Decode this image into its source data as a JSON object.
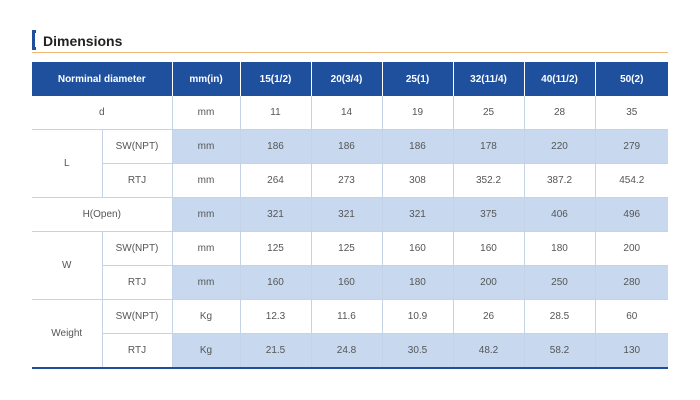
{
  "section": {
    "title": "Dimensions"
  },
  "table": {
    "header": {
      "label": "Norminal diameter",
      "unit": "mm(in)",
      "sizes": [
        "15(1/2)",
        "20(3/4)",
        "25(1)",
        "32(11/4)",
        "40(11/2)",
        "50(2)"
      ]
    },
    "rows": [
      {
        "group": "d",
        "sub": "",
        "unit": "mm",
        "values": [
          "11",
          "14",
          "19",
          "25",
          "28",
          "35"
        ]
      },
      {
        "group": "L",
        "sub": "SW(NPT)",
        "unit": "mm",
        "values": [
          "186",
          "186",
          "186",
          "178",
          "220",
          "279"
        ]
      },
      {
        "group": "L",
        "sub": "RTJ",
        "unit": "mm",
        "values": [
          "264",
          "273",
          "308",
          "352.2",
          "387.2",
          "454.2"
        ]
      },
      {
        "group": "H(Open)",
        "sub": "",
        "unit": "mm",
        "values": [
          "321",
          "321",
          "321",
          "375",
          "406",
          "496"
        ]
      },
      {
        "group": "W",
        "sub": "SW(NPT)",
        "unit": "mm",
        "values": [
          "125",
          "125",
          "160",
          "160",
          "180",
          "200"
        ]
      },
      {
        "group": "W",
        "sub": "RTJ",
        "unit": "mm",
        "values": [
          "160",
          "160",
          "180",
          "200",
          "250",
          "280"
        ]
      },
      {
        "group": "Weight",
        "sub": "SW(NPT)",
        "unit": "Kg",
        "values": [
          "12.3",
          "11.6",
          "10.9",
          "26",
          "28.5",
          "60"
        ]
      },
      {
        "group": "Weight",
        "sub": "RTJ",
        "unit": "Kg",
        "values": [
          "21.5",
          "24.8",
          "30.5",
          "48.2",
          "58.2",
          "130"
        ]
      }
    ]
  }
}
